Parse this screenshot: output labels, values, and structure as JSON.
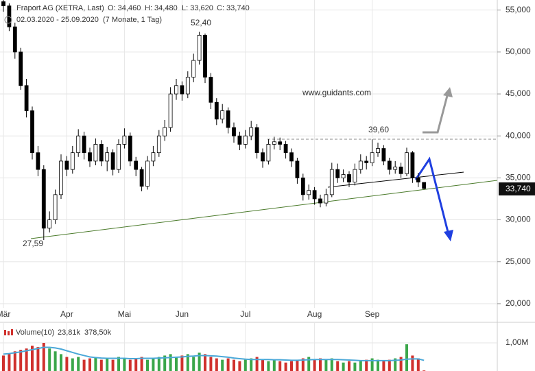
{
  "chart_data": {
    "type": "candlestick",
    "title": "Fraport AG (XETRA, Last)",
    "ohlc_labels": [
      "O: 34,460",
      "H: 34,480",
      "L: 33,620",
      "C: 33,740"
    ],
    "date_range": "02.03.2020 - 25.09.2020",
    "period": "(7 Monate, 1 Tag)",
    "watermark": "www.guidants.com",
    "annotations": [
      "52,40",
      "27,59",
      "39,60"
    ],
    "last_price_label": "33,740",
    "categories": [
      "Mär",
      null,
      null,
      null,
      null,
      null,
      null,
      null,
      null,
      null,
      null,
      "Apr",
      null,
      null,
      null,
      null,
      null,
      null,
      null,
      null,
      null,
      "Mai",
      null,
      null,
      null,
      null,
      null,
      null,
      null,
      null,
      null,
      "Jun",
      null,
      null,
      null,
      null,
      null,
      null,
      null,
      null,
      null,
      null,
      "Jul",
      null,
      null,
      null,
      null,
      null,
      null,
      null,
      null,
      null,
      null,
      null,
      "Aug",
      null,
      null,
      null,
      null,
      null,
      null,
      null,
      null,
      null,
      "Sep",
      null,
      null,
      null,
      null,
      null,
      null,
      null,
      null,
      null
    ],
    "open": [
      56.0,
      55.5,
      53,
      50,
      46,
      43,
      38,
      36,
      29,
      30,
      33,
      37,
      36,
      38,
      40,
      38,
      37,
      39,
      37,
      38,
      36,
      39,
      40,
      37,
      36,
      34,
      37,
      38,
      40,
      41,
      45,
      46,
      45,
      47,
      49,
      52,
      47,
      44,
      42,
      43,
      41,
      40,
      39,
      40,
      41,
      38,
      37,
      39,
      39.3,
      39,
      38,
      37,
      35,
      33,
      33.5,
      32.5,
      32,
      33,
      36,
      35,
      35.4,
      34.5,
      36,
      37,
      36.8,
      38,
      38.5,
      37,
      36,
      36.3,
      35.5,
      38,
      35,
      34.46
    ],
    "high": [
      56.5,
      55.8,
      53.5,
      50.5,
      46.8,
      43.5,
      38.8,
      36.5,
      31,
      33.6,
      37.8,
      37.6,
      38.8,
      40.8,
      40.5,
      38.6,
      39.7,
      39.5,
      38.7,
      38.4,
      39.6,
      40.9,
      40.4,
      37.5,
      36.3,
      37.6,
      38.8,
      40.7,
      41.9,
      45.8,
      46.8,
      46.5,
      47.7,
      49.8,
      52.4,
      52.2,
      47.5,
      44.5,
      43.8,
      43.4,
      41.6,
      40.5,
      40.7,
      41.8,
      41.4,
      38.5,
      39.6,
      39.9,
      39.8,
      39.4,
      38.5,
      37.4,
      35.5,
      34.2,
      33.9,
      33,
      33.7,
      36.8,
      36.7,
      36,
      35.8,
      36.7,
      37.8,
      37.6,
      39.6,
      39.2,
      38.9,
      37.4,
      37,
      36.8,
      38.6,
      38.2,
      35.6,
      34.48
    ],
    "low": [
      54.8,
      52.5,
      49.2,
      45.5,
      42.2,
      37.2,
      35.2,
      27.59,
      28.5,
      29.5,
      32.5,
      35.2,
      35.5,
      37.5,
      37.2,
      36.3,
      36.5,
      36.4,
      35.8,
      35.3,
      35.6,
      38.5,
      36.4,
      35.2,
      33.4,
      33.6,
      36.4,
      37.5,
      39.4,
      40.5,
      44.3,
      44.2,
      44.5,
      46.4,
      48.5,
      46.3,
      43.2,
      41.3,
      41.5,
      40.3,
      39.2,
      38.3,
      38.5,
      39.5,
      37.3,
      36.2,
      36.6,
      38.4,
      38.3,
      37.3,
      36.3,
      34.3,
      32.3,
      32.4,
      31.8,
      31.5,
      31.6,
      32.7,
      34.4,
      34.5,
      33.9,
      34.1,
      35.5,
      36,
      36.4,
      37.5,
      36.5,
      35.4,
      35.5,
      35,
      35.2,
      34.4,
      33.9,
      33.62
    ],
    "close": [
      55.5,
      53,
      50,
      46,
      43,
      38,
      36,
      29,
      30,
      33,
      37,
      36,
      38,
      40,
      38,
      37,
      39,
      37,
      38,
      36,
      39,
      40,
      37,
      36,
      34,
      37,
      38,
      40,
      41,
      45,
      46,
      45,
      47,
      49,
      52,
      47,
      44,
      42,
      43,
      41,
      40,
      39,
      40,
      41,
      38,
      37,
      39,
      39.3,
      39,
      38,
      37,
      35,
      33,
      33.5,
      32.5,
      32,
      33,
      36,
      35,
      35.4,
      34.5,
      36,
      37,
      36.8,
      38,
      38.5,
      37,
      36,
      36.3,
      35.5,
      38,
      35,
      34.5,
      33.74
    ],
    "ylim": [
      19.5,
      56.2
    ],
    "yticks": [
      {
        "value": 20,
        "label": "20,000"
      },
      {
        "value": 25,
        "label": "25,000"
      },
      {
        "value": 30,
        "label": "30,000"
      },
      {
        "value": 35,
        "label": "35,000"
      },
      {
        "value": 40,
        "label": "40,000"
      },
      {
        "value": 45,
        "label": "45,000"
      },
      {
        "value": 50,
        "label": "50,000"
      },
      {
        "value": 55,
        "label": "55,000"
      }
    ],
    "grid": true,
    "up_color": "#ffffff",
    "down_color": "#000000",
    "volume": {
      "name": "Volume(10)",
      "last_label": "23,81k",
      "ma_label": "378,50k",
      "up_color": "#3aa64a",
      "down_color": "#d0312d",
      "ma_color": "#4aa8d8",
      "values": [
        0.55,
        0.6,
        0.7,
        0.75,
        0.8,
        0.9,
        0.85,
        1.0,
        0.8,
        0.7,
        0.6,
        0.5,
        0.45,
        0.5,
        0.4,
        0.45,
        0.5,
        0.4,
        0.45,
        0.4,
        0.5,
        0.45,
        0.4,
        0.45,
        0.5,
        0.4,
        0.45,
        0.5,
        0.55,
        0.6,
        0.5,
        0.55,
        0.6,
        0.5,
        0.65,
        0.6,
        0.5,
        0.45,
        0.4,
        0.45,
        0.4,
        0.35,
        0.4,
        0.45,
        0.5,
        0.4,
        0.35,
        0.4,
        0.35,
        0.3,
        0.35,
        0.4,
        0.45,
        0.5,
        0.4,
        0.45,
        0.4,
        0.45,
        0.35,
        0.3,
        0.35,
        0.3,
        0.35,
        0.4,
        0.45,
        0.4,
        0.35,
        0.4,
        0.45,
        0.5,
        0.95,
        0.55,
        0.45,
        0.02
      ],
      "ma": [
        0.6,
        0.62,
        0.65,
        0.68,
        0.72,
        0.76,
        0.8,
        0.84,
        0.84,
        0.82,
        0.78,
        0.72,
        0.66,
        0.6,
        0.55,
        0.5,
        0.48,
        0.46,
        0.45,
        0.45,
        0.45,
        0.45,
        0.44,
        0.44,
        0.45,
        0.45,
        0.45,
        0.46,
        0.47,
        0.48,
        0.49,
        0.5,
        0.52,
        0.53,
        0.55,
        0.55,
        0.54,
        0.53,
        0.51,
        0.49,
        0.46,
        0.44,
        0.42,
        0.41,
        0.41,
        0.41,
        0.41,
        0.4,
        0.4,
        0.39,
        0.38,
        0.38,
        0.39,
        0.4,
        0.41,
        0.41,
        0.41,
        0.41,
        0.41,
        0.4,
        0.39,
        0.38,
        0.37,
        0.37,
        0.37,
        0.37,
        0.37,
        0.37,
        0.38,
        0.39,
        0.42,
        0.43,
        0.43,
        0.38
      ],
      "ylim": [
        0,
        1.0
      ],
      "yticks": [
        {
          "value": 1,
          "label": "1,00M"
        }
      ]
    }
  }
}
